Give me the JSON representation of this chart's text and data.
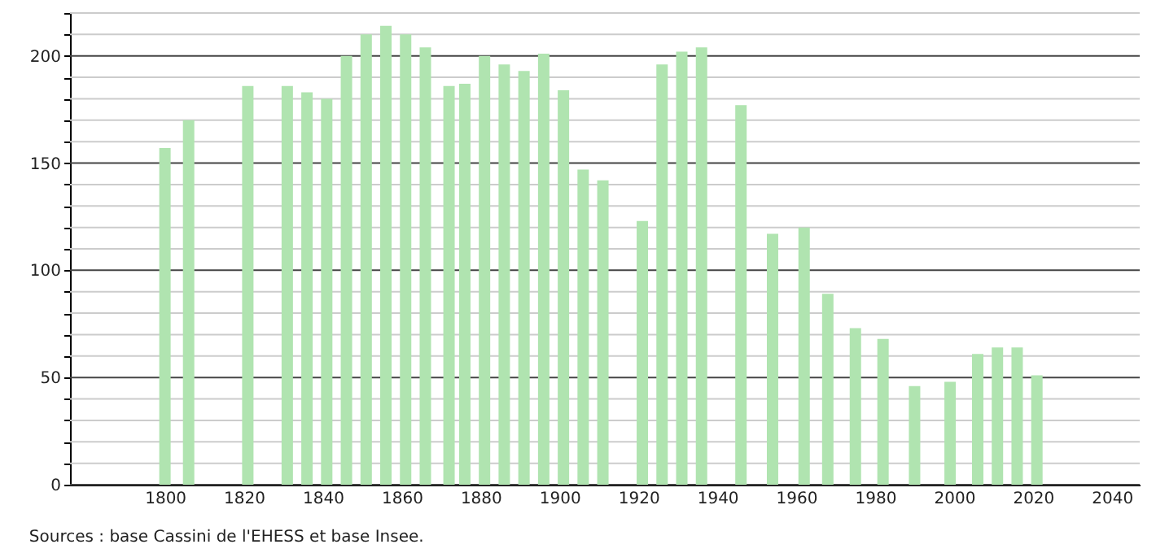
{
  "chart_data": {
    "type": "bar",
    "color": "#b0e4b0",
    "x": [
      1800,
      1806,
      1821,
      1831,
      1836,
      1841,
      1846,
      1851,
      1856,
      1861,
      1866,
      1872,
      1876,
      1881,
      1886,
      1891,
      1896,
      1901,
      1906,
      1911,
      1921,
      1926,
      1931,
      1936,
      1946,
      1954,
      1962,
      1968,
      1975,
      1982,
      1990,
      1999,
      2006,
      2011,
      2016,
      2021
    ],
    "values": [
      157,
      170,
      186,
      186,
      183,
      180,
      200,
      210,
      214,
      210,
      204,
      186,
      187,
      200,
      196,
      193,
      201,
      184,
      147,
      142,
      123,
      196,
      202,
      204,
      177,
      117,
      120,
      89,
      73,
      68,
      46,
      48,
      61,
      64,
      64,
      51
    ],
    "xlim": [
      1778,
      2045
    ],
    "xticks": [
      1800,
      1820,
      1840,
      1860,
      1880,
      1900,
      1920,
      1940,
      1960,
      1980,
      2000,
      2020,
      2040
    ],
    "ylim": [
      0,
      220
    ],
    "yticks": [
      0,
      {
        "value": 10,
        "label": null
      },
      {
        "value": 20,
        "label": null
      },
      {
        "value": 30,
        "label": null
      },
      {
        "value": 40,
        "label": null
      },
      50,
      {
        "value": 60,
        "label": null
      },
      {
        "value": 70,
        "label": null
      },
      {
        "value": 80,
        "label": null
      },
      {
        "value": 90,
        "label": null
      },
      100,
      {
        "value": 110,
        "label": null
      },
      {
        "value": 120,
        "label": null
      },
      {
        "value": 130,
        "label": null
      },
      {
        "value": 140,
        "label": null
      },
      150,
      {
        "value": 160,
        "label": null
      },
      {
        "value": 170,
        "label": null
      },
      {
        "value": 180,
        "label": null
      },
      {
        "value": 190,
        "label": null
      },
      200,
      {
        "value": 210,
        "label": null
      },
      {
        "value": 220,
        "label": null
      }
    ],
    "grid": "y",
    "annotations": [
      "Sources : base Cassini de l'EHESS et base Insee."
    ]
  }
}
